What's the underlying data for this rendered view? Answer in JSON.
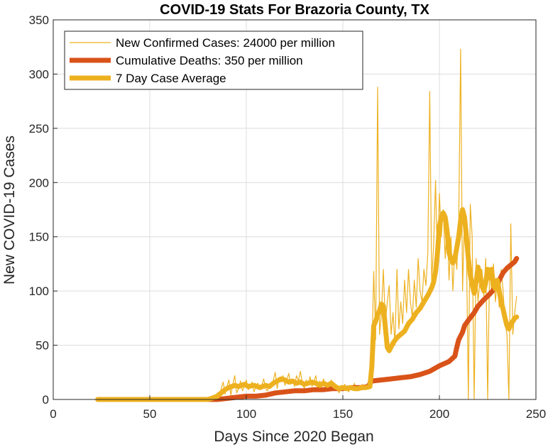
{
  "chart_data": {
    "type": "line",
    "title": "COVID-19 Stats For Brazoria County, TX",
    "xlabel": "Days Since 2020 Began",
    "ylabel": "New COVID-19 Cases",
    "xlim": [
      0,
      250
    ],
    "ylim": [
      0,
      350
    ],
    "xticks": [
      0,
      50,
      100,
      150,
      200,
      250
    ],
    "yticks": [
      0,
      50,
      100,
      150,
      200,
      250,
      300,
      350
    ],
    "grid": true,
    "legend_position": "top-left",
    "series": [
      {
        "name": "New Confirmed Cases: 24000 per million",
        "color": "#EDB120",
        "style": "thin",
        "points": [
          [
            23,
            0
          ],
          [
            30,
            0
          ],
          [
            40,
            0
          ],
          [
            50,
            0
          ],
          [
            60,
            0
          ],
          [
            70,
            0
          ],
          [
            75,
            0
          ],
          [
            78,
            0
          ],
          [
            80,
            1
          ],
          [
            82,
            0
          ],
          [
            84,
            3
          ],
          [
            85,
            6
          ],
          [
            86,
            1
          ],
          [
            87,
            10
          ],
          [
            88,
            16
          ],
          [
            89,
            5
          ],
          [
            90,
            12
          ],
          [
            91,
            18
          ],
          [
            92,
            4
          ],
          [
            93,
            14
          ],
          [
            94,
            22
          ],
          [
            95,
            6
          ],
          [
            96,
            10
          ],
          [
            97,
            17
          ],
          [
            98,
            8
          ],
          [
            99,
            12
          ],
          [
            100,
            18
          ],
          [
            101,
            9
          ],
          [
            102,
            11
          ],
          [
            103,
            16
          ],
          [
            104,
            7
          ],
          [
            105,
            12
          ],
          [
            106,
            15
          ],
          [
            107,
            9
          ],
          [
            108,
            13
          ],
          [
            109,
            19
          ],
          [
            110,
            10
          ],
          [
            111,
            8
          ],
          [
            112,
            14
          ],
          [
            113,
            11
          ],
          [
            114,
            18
          ],
          [
            115,
            25
          ],
          [
            116,
            10
          ],
          [
            117,
            20
          ],
          [
            118,
            16
          ],
          [
            119,
            22
          ],
          [
            120,
            13
          ],
          [
            121,
            18
          ],
          [
            122,
            24
          ],
          [
            123,
            14
          ],
          [
            124,
            19
          ],
          [
            125,
            12
          ],
          [
            126,
            22
          ],
          [
            127,
            17
          ],
          [
            128,
            26
          ],
          [
            129,
            15
          ],
          [
            130,
            10
          ],
          [
            131,
            18
          ],
          [
            132,
            14
          ],
          [
            133,
            21
          ],
          [
            134,
            12
          ],
          [
            135,
            16
          ],
          [
            136,
            22
          ],
          [
            137,
            9
          ],
          [
            138,
            17
          ],
          [
            139,
            13
          ],
          [
            140,
            19
          ],
          [
            141,
            10
          ],
          [
            142,
            15
          ],
          [
            143,
            12
          ],
          [
            144,
            18
          ],
          [
            145,
            9
          ],
          [
            146,
            14
          ],
          [
            147,
            11
          ],
          [
            148,
            6
          ],
          [
            149,
            13
          ],
          [
            150,
            8
          ],
          [
            151,
            14
          ],
          [
            152,
            10
          ],
          [
            153,
            7
          ],
          [
            154,
            12
          ],
          [
            155,
            9
          ],
          [
            156,
            15
          ],
          [
            157,
            8
          ],
          [
            158,
            12
          ],
          [
            159,
            10
          ],
          [
            160,
            14
          ],
          [
            161,
            9
          ],
          [
            162,
            11
          ],
          [
            163,
            15
          ],
          [
            164,
            20
          ],
          [
            165,
            40
          ],
          [
            166,
            118
          ],
          [
            167,
            55
          ],
          [
            168,
            288
          ],
          [
            169,
            60
          ],
          [
            170,
            80
          ],
          [
            171,
            120
          ],
          [
            172,
            70
          ],
          [
            173,
            90
          ],
          [
            174,
            105
          ],
          [
            175,
            60
          ],
          [
            176,
            80
          ],
          [
            177,
            50
          ],
          [
            178,
            120
          ],
          [
            179,
            65
          ],
          [
            180,
            90
          ],
          [
            181,
            70
          ],
          [
            182,
            110
          ],
          [
            183,
            80
          ],
          [
            184,
            120
          ],
          [
            185,
            90
          ],
          [
            186,
            75
          ],
          [
            187,
            110
          ],
          [
            188,
            85
          ],
          [
            189,
            130
          ],
          [
            190,
            100
          ],
          [
            191,
            90
          ],
          [
            192,
            120
          ],
          [
            193,
            105
          ],
          [
            194,
            135
          ],
          [
            195,
            284
          ],
          [
            196,
            110
          ],
          [
            197,
            140
          ],
          [
            198,
            202
          ],
          [
            199,
            120
          ],
          [
            200,
            190
          ],
          [
            201,
            150
          ],
          [
            202,
            175
          ],
          [
            203,
            130
          ],
          [
            204,
            165
          ],
          [
            205,
            110
          ],
          [
            206,
            150
          ],
          [
            207,
            100
          ],
          [
            208,
            140
          ],
          [
            209,
            120
          ],
          [
            210,
            160
          ],
          [
            211,
            323
          ],
          [
            212,
            100
          ],
          [
            213,
            170
          ],
          [
            214,
            140
          ],
          [
            215,
            0
          ],
          [
            216,
            180
          ],
          [
            217,
            150
          ],
          [
            218,
            0
          ],
          [
            219,
            130
          ],
          [
            220,
            90
          ],
          [
            221,
            110
          ],
          [
            222,
            120
          ],
          [
            223,
            95
          ],
          [
            224,
            130
          ],
          [
            225,
            0
          ],
          [
            226,
            120
          ],
          [
            227,
            100
          ],
          [
            228,
            125
          ],
          [
            229,
            90
          ],
          [
            230,
            110
          ],
          [
            231,
            85
          ],
          [
            232,
            120
          ],
          [
            233,
            100
          ],
          [
            234,
            70
          ],
          [
            235,
            60
          ],
          [
            236,
            0
          ],
          [
            237,
            162
          ],
          [
            238,
            60
          ],
          [
            239,
            80
          ],
          [
            240,
            95
          ]
        ]
      },
      {
        "name": "Cumulative Deaths: 350 per million",
        "color": "#D95319",
        "style": "thick",
        "points": [
          [
            80,
            0
          ],
          [
            85,
            0
          ],
          [
            90,
            1
          ],
          [
            95,
            2
          ],
          [
            100,
            3
          ],
          [
            105,
            3
          ],
          [
            110,
            4
          ],
          [
            115,
            6
          ],
          [
            120,
            7
          ],
          [
            125,
            8
          ],
          [
            130,
            8
          ],
          [
            135,
            9
          ],
          [
            140,
            9
          ],
          [
            145,
            10
          ],
          [
            150,
            10
          ],
          [
            155,
            11
          ],
          [
            160,
            11
          ],
          [
            163,
            12
          ],
          [
            165,
            17
          ],
          [
            170,
            18
          ],
          [
            175,
            19
          ],
          [
            180,
            20
          ],
          [
            185,
            21
          ],
          [
            190,
            23
          ],
          [
            195,
            26
          ],
          [
            200,
            31
          ],
          [
            205,
            35
          ],
          [
            208,
            40
          ],
          [
            209,
            48
          ],
          [
            210,
            55
          ],
          [
            212,
            62
          ],
          [
            213,
            68
          ],
          [
            215,
            73
          ],
          [
            218,
            80
          ],
          [
            220,
            86
          ],
          [
            223,
            92
          ],
          [
            226,
            97
          ],
          [
            229,
            103
          ],
          [
            231,
            110
          ],
          [
            233,
            117
          ],
          [
            235,
            121
          ],
          [
            237,
            124
          ],
          [
            239,
            127
          ],
          [
            240,
            130
          ]
        ]
      },
      {
        "name": "7 Day Case Average",
        "color": "#EDB120",
        "style": "thick",
        "points": [
          [
            23,
            0
          ],
          [
            30,
            0
          ],
          [
            40,
            0
          ],
          [
            50,
            0
          ],
          [
            60,
            0
          ],
          [
            70,
            0
          ],
          [
            76,
            0
          ],
          [
            80,
            0
          ],
          [
            82,
            1
          ],
          [
            85,
            3
          ],
          [
            87,
            6
          ],
          [
            89,
            9
          ],
          [
            91,
            11
          ],
          [
            94,
            13
          ],
          [
            96,
            12
          ],
          [
            99,
            14
          ],
          [
            101,
            12
          ],
          [
            104,
            13
          ],
          [
            107,
            11
          ],
          [
            110,
            13
          ],
          [
            112,
            12
          ],
          [
            114,
            15
          ],
          [
            116,
            17
          ],
          [
            118,
            19
          ],
          [
            120,
            18
          ],
          [
            122,
            16
          ],
          [
            124,
            17
          ],
          [
            126,
            15
          ],
          [
            128,
            16
          ],
          [
            130,
            14
          ],
          [
            132,
            15
          ],
          [
            134,
            16
          ],
          [
            136,
            15
          ],
          [
            138,
            13
          ],
          [
            140,
            15
          ],
          [
            142,
            13
          ],
          [
            144,
            15
          ],
          [
            146,
            12
          ],
          [
            148,
            10
          ],
          [
            150,
            11
          ],
          [
            152,
            10
          ],
          [
            154,
            11
          ],
          [
            156,
            10
          ],
          [
            158,
            10
          ],
          [
            160,
            11
          ],
          [
            162,
            11
          ],
          [
            164,
            12
          ],
          [
            165,
            30
          ],
          [
            166,
            68
          ],
          [
            167,
            72
          ],
          [
            168,
            78
          ],
          [
            169,
            82
          ],
          [
            170,
            88
          ],
          [
            171,
            86
          ],
          [
            172,
            67
          ],
          [
            173,
            48
          ],
          [
            174,
            45
          ],
          [
            176,
            52
          ],
          [
            178,
            57
          ],
          [
            180,
            60
          ],
          [
            182,
            63
          ],
          [
            184,
            70
          ],
          [
            186,
            74
          ],
          [
            188,
            80
          ],
          [
            190,
            84
          ],
          [
            192,
            90
          ],
          [
            194,
            96
          ],
          [
            196,
            103
          ],
          [
            197,
            108
          ],
          [
            198,
            118
          ],
          [
            199,
            135
          ],
          [
            200,
            160
          ],
          [
            201,
            168
          ],
          [
            202,
            172
          ],
          [
            203,
            168
          ],
          [
            204,
            155
          ],
          [
            205,
            135
          ],
          [
            206,
            130
          ],
          [
            207,
            126
          ],
          [
            208,
            130
          ],
          [
            209,
            140
          ],
          [
            210,
            150
          ],
          [
            211,
            165
          ],
          [
            212,
            175
          ],
          [
            213,
            168
          ],
          [
            214,
            150
          ],
          [
            215,
            130
          ],
          [
            216,
            115
          ],
          [
            217,
            106
          ],
          [
            218,
            98
          ],
          [
            219,
            108
          ],
          [
            220,
            122
          ],
          [
            221,
            116
          ],
          [
            222,
            105
          ],
          [
            223,
            100
          ],
          [
            224,
            108
          ],
          [
            225,
            120
          ],
          [
            226,
            112
          ],
          [
            227,
            120
          ],
          [
            228,
            106
          ],
          [
            229,
            102
          ],
          [
            230,
            110
          ],
          [
            231,
            100
          ],
          [
            232,
            90
          ],
          [
            233,
            83
          ],
          [
            234,
            75
          ],
          [
            235,
            68
          ],
          [
            236,
            65
          ],
          [
            237,
            70
          ],
          [
            238,
            72
          ],
          [
            239,
            75
          ],
          [
            240,
            76
          ]
        ]
      }
    ]
  }
}
